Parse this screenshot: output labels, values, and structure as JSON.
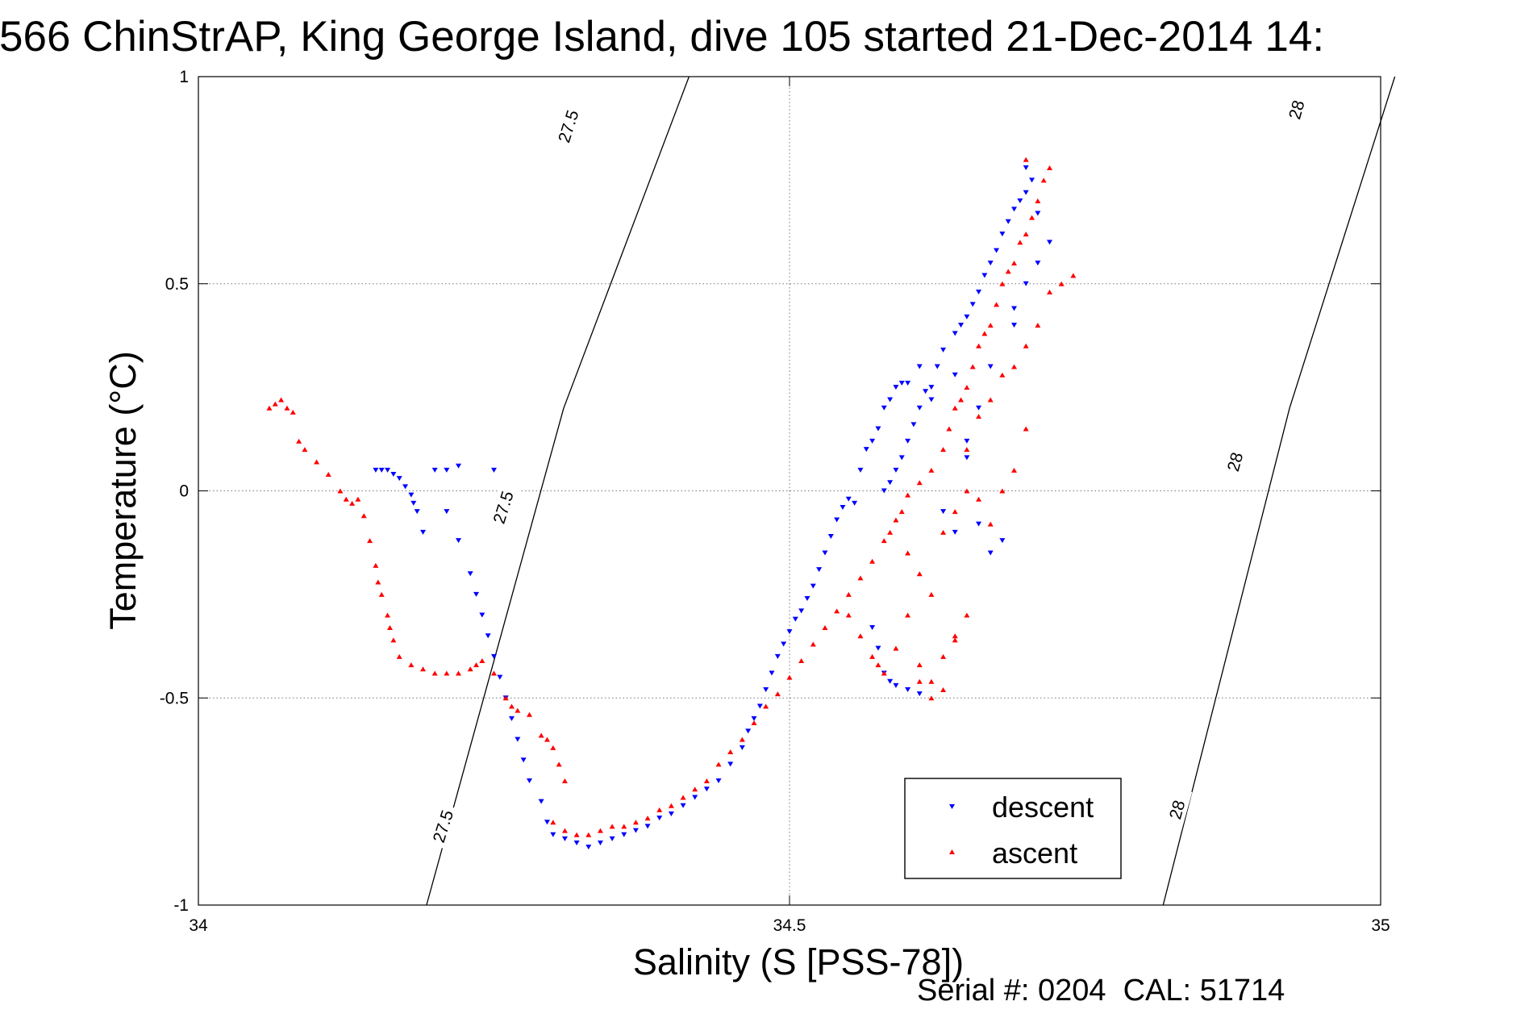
{
  "chart_data": {
    "type": "scatter",
    "title": "566 ChinStrAP, King George Island, dive 105 started 21-Dec-2014 14:",
    "xlabel": "Salinity (S [PSS-78])",
    "ylabel": "Temperature (°C)",
    "xlim": [
      34,
      35
    ],
    "ylim": [
      -1,
      1
    ],
    "xticks": [
      "34",
      "34.5",
      "35"
    ],
    "yticks": [
      "-1",
      "-0.5",
      "0",
      "0.5",
      "1"
    ],
    "grid": true,
    "legend_position": "bottom-right",
    "footer": "Serial #: 0204  CAL: 51714",
    "density_contours": [
      {
        "value": "27.5",
        "points": [
          [
            34.193,
            -1.0
          ],
          [
            34.309,
            0.2
          ],
          [
            34.415,
            1.0
          ]
        ],
        "labels": [
          [
            34.207,
            -0.81
          ],
          [
            34.258,
            -0.04
          ],
          [
            34.313,
            0.88
          ]
        ]
      },
      {
        "value": "28",
        "points": [
          [
            34.816,
            -1.0
          ],
          [
            34.923,
            0.2
          ],
          [
            35.012,
            1.0
          ]
        ],
        "labels": [
          [
            34.828,
            -0.77
          ],
          [
            34.877,
            0.07
          ],
          [
            34.929,
            0.92
          ]
        ]
      }
    ],
    "series": [
      {
        "name": "descent",
        "color": "#0000ff",
        "marker": "triangle-down",
        "points": [
          [
            34.15,
            0.05
          ],
          [
            34.155,
            0.05
          ],
          [
            34.16,
            0.05
          ],
          [
            34.165,
            0.04
          ],
          [
            34.17,
            0.03
          ],
          [
            34.175,
            0.01
          ],
          [
            34.18,
            -0.01
          ],
          [
            34.182,
            -0.03
          ],
          [
            34.185,
            -0.05
          ],
          [
            34.19,
            -0.1
          ],
          [
            34.2,
            0.05
          ],
          [
            34.21,
            0.05
          ],
          [
            34.22,
            0.06
          ],
          [
            34.25,
            0.05
          ],
          [
            34.21,
            -0.05
          ],
          [
            34.22,
            -0.12
          ],
          [
            34.23,
            -0.2
          ],
          [
            34.235,
            -0.25
          ],
          [
            34.24,
            -0.3
          ],
          [
            34.245,
            -0.35
          ],
          [
            34.25,
            -0.4
          ],
          [
            34.255,
            -0.45
          ],
          [
            34.26,
            -0.5
          ],
          [
            34.265,
            -0.55
          ],
          [
            34.27,
            -0.6
          ],
          [
            34.275,
            -0.65
          ],
          [
            34.28,
            -0.7
          ],
          [
            34.29,
            -0.75
          ],
          [
            34.295,
            -0.8
          ],
          [
            34.3,
            -0.83
          ],
          [
            34.31,
            -0.84
          ],
          [
            34.32,
            -0.85
          ],
          [
            34.33,
            -0.86
          ],
          [
            34.34,
            -0.85
          ],
          [
            34.35,
            -0.84
          ],
          [
            34.36,
            -0.83
          ],
          [
            34.37,
            -0.82
          ],
          [
            34.38,
            -0.81
          ],
          [
            34.39,
            -0.79
          ],
          [
            34.4,
            -0.78
          ],
          [
            34.41,
            -0.76
          ],
          [
            34.42,
            -0.74
          ],
          [
            34.43,
            -0.72
          ],
          [
            34.44,
            -0.7
          ],
          [
            34.45,
            -0.66
          ],
          [
            34.46,
            -0.62
          ],
          [
            34.465,
            -0.58
          ],
          [
            34.47,
            -0.55
          ],
          [
            34.475,
            -0.52
          ],
          [
            34.48,
            -0.48
          ],
          [
            34.485,
            -0.44
          ],
          [
            34.49,
            -0.4
          ],
          [
            34.495,
            -0.37
          ],
          [
            34.5,
            -0.34
          ],
          [
            34.505,
            -0.31
          ],
          [
            34.51,
            -0.29
          ],
          [
            34.515,
            -0.26
          ],
          [
            34.52,
            -0.23
          ],
          [
            34.525,
            -0.19
          ],
          [
            34.53,
            -0.15
          ],
          [
            34.535,
            -0.11
          ],
          [
            34.54,
            -0.07
          ],
          [
            34.545,
            -0.04
          ],
          [
            34.55,
            -0.02
          ],
          [
            34.555,
            -0.03
          ],
          [
            34.56,
            0.05
          ],
          [
            34.565,
            0.1
          ],
          [
            34.57,
            0.12
          ],
          [
            34.575,
            0.15
          ],
          [
            34.58,
            0.2
          ],
          [
            34.585,
            0.22
          ],
          [
            34.59,
            0.25
          ],
          [
            34.595,
            0.26
          ],
          [
            34.6,
            0.26
          ],
          [
            34.57,
            -0.33
          ],
          [
            34.575,
            -0.38
          ],
          [
            34.58,
            -0.44
          ],
          [
            34.585,
            -0.46
          ],
          [
            34.59,
            -0.47
          ],
          [
            34.6,
            -0.48
          ],
          [
            34.61,
            -0.49
          ],
          [
            34.58,
            0.0
          ],
          [
            34.585,
            0.02
          ],
          [
            34.59,
            0.05
          ],
          [
            34.595,
            0.08
          ],
          [
            34.6,
            0.12
          ],
          [
            34.605,
            0.16
          ],
          [
            34.61,
            0.2
          ],
          [
            34.615,
            0.24
          ],
          [
            34.62,
            0.25
          ],
          [
            34.625,
            0.3
          ],
          [
            34.63,
            0.34
          ],
          [
            34.64,
            0.38
          ],
          [
            34.645,
            0.4
          ],
          [
            34.65,
            0.42
          ],
          [
            34.655,
            0.45
          ],
          [
            34.66,
            0.48
          ],
          [
            34.665,
            0.52
          ],
          [
            34.67,
            0.55
          ],
          [
            34.675,
            0.58
          ],
          [
            34.68,
            0.62
          ],
          [
            34.685,
            0.65
          ],
          [
            34.69,
            0.68
          ],
          [
            34.695,
            0.7
          ],
          [
            34.7,
            0.72
          ],
          [
            34.705,
            0.75
          ],
          [
            34.7,
            0.78
          ],
          [
            34.61,
            0.3
          ],
          [
            34.62,
            0.22
          ],
          [
            34.64,
            0.28
          ],
          [
            34.65,
            0.12
          ],
          [
            34.66,
            0.2
          ],
          [
            34.67,
            0.3
          ],
          [
            34.69,
            0.4
          ],
          [
            34.7,
            0.5
          ],
          [
            34.71,
            0.55
          ],
          [
            34.72,
            0.6
          ],
          [
            34.71,
            0.67
          ],
          [
            34.69,
            0.44
          ],
          [
            34.65,
            0.08
          ],
          [
            34.63,
            -0.05
          ],
          [
            34.64,
            -0.1
          ],
          [
            34.66,
            -0.08
          ],
          [
            34.67,
            -0.15
          ],
          [
            34.68,
            -0.12
          ]
        ]
      },
      {
        "name": "ascent",
        "color": "#ff0000",
        "marker": "triangle-up",
        "points": [
          [
            34.06,
            0.2
          ],
          [
            34.065,
            0.21
          ],
          [
            34.07,
            0.22
          ],
          [
            34.075,
            0.2
          ],
          [
            34.08,
            0.19
          ],
          [
            34.085,
            0.12
          ],
          [
            34.09,
            0.1
          ],
          [
            34.1,
            0.07
          ],
          [
            34.11,
            0.04
          ],
          [
            34.12,
            0.0
          ],
          [
            34.125,
            -0.02
          ],
          [
            34.13,
            -0.03
          ],
          [
            34.135,
            -0.02
          ],
          [
            34.14,
            -0.06
          ],
          [
            34.145,
            -0.12
          ],
          [
            34.15,
            -0.18
          ],
          [
            34.152,
            -0.22
          ],
          [
            34.155,
            -0.25
          ],
          [
            34.16,
            -0.3
          ],
          [
            34.162,
            -0.33
          ],
          [
            34.165,
            -0.36
          ],
          [
            34.17,
            -0.4
          ],
          [
            34.18,
            -0.42
          ],
          [
            34.19,
            -0.43
          ],
          [
            34.2,
            -0.44
          ],
          [
            34.21,
            -0.44
          ],
          [
            34.22,
            -0.44
          ],
          [
            34.23,
            -0.43
          ],
          [
            34.235,
            -0.42
          ],
          [
            34.24,
            -0.41
          ],
          [
            34.25,
            -0.44
          ],
          [
            34.26,
            -0.5
          ],
          [
            34.265,
            -0.52
          ],
          [
            34.27,
            -0.53
          ],
          [
            34.28,
            -0.54
          ],
          [
            34.29,
            -0.59
          ],
          [
            34.295,
            -0.6
          ],
          [
            34.3,
            -0.62
          ],
          [
            34.305,
            -0.66
          ],
          [
            34.31,
            -0.7
          ],
          [
            34.3,
            -0.8
          ],
          [
            34.31,
            -0.82
          ],
          [
            34.32,
            -0.83
          ],
          [
            34.33,
            -0.83
          ],
          [
            34.34,
            -0.82
          ],
          [
            34.35,
            -0.81
          ],
          [
            34.36,
            -0.81
          ],
          [
            34.37,
            -0.8
          ],
          [
            34.38,
            -0.79
          ],
          [
            34.39,
            -0.77
          ],
          [
            34.4,
            -0.76
          ],
          [
            34.41,
            -0.74
          ],
          [
            34.42,
            -0.72
          ],
          [
            34.43,
            -0.7
          ],
          [
            34.44,
            -0.66
          ],
          [
            34.45,
            -0.63
          ],
          [
            34.46,
            -0.6
          ],
          [
            34.47,
            -0.56
          ],
          [
            34.48,
            -0.52
          ],
          [
            34.49,
            -0.49
          ],
          [
            34.5,
            -0.45
          ],
          [
            34.51,
            -0.41
          ],
          [
            34.52,
            -0.37
          ],
          [
            34.53,
            -0.33
          ],
          [
            34.54,
            -0.29
          ],
          [
            34.55,
            -0.25
          ],
          [
            34.56,
            -0.21
          ],
          [
            34.57,
            -0.17
          ],
          [
            34.58,
            -0.12
          ],
          [
            34.585,
            -0.1
          ],
          [
            34.59,
            -0.07
          ],
          [
            34.595,
            -0.05
          ],
          [
            34.6,
            -0.01
          ],
          [
            34.61,
            0.02
          ],
          [
            34.62,
            0.05
          ],
          [
            34.63,
            0.1
          ],
          [
            34.635,
            0.15
          ],
          [
            34.64,
            0.2
          ],
          [
            34.645,
            0.22
          ],
          [
            34.65,
            0.25
          ],
          [
            34.655,
            0.3
          ],
          [
            34.66,
            0.35
          ],
          [
            34.665,
            0.38
          ],
          [
            34.67,
            0.4
          ],
          [
            34.675,
            0.45
          ],
          [
            34.68,
            0.5
          ],
          [
            34.685,
            0.53
          ],
          [
            34.69,
            0.55
          ],
          [
            34.695,
            0.6
          ],
          [
            34.7,
            0.62
          ],
          [
            34.705,
            0.66
          ],
          [
            34.71,
            0.7
          ],
          [
            34.715,
            0.75
          ],
          [
            34.72,
            0.78
          ],
          [
            34.7,
            0.8
          ],
          [
            34.55,
            -0.3
          ],
          [
            34.56,
            -0.35
          ],
          [
            34.57,
            -0.4
          ],
          [
            34.575,
            -0.42
          ],
          [
            34.58,
            -0.44
          ],
          [
            34.59,
            -0.38
          ],
          [
            34.6,
            -0.3
          ],
          [
            34.61,
            -0.46
          ],
          [
            34.62,
            -0.5
          ],
          [
            34.63,
            -0.4
          ],
          [
            34.64,
            -0.35
          ],
          [
            34.62,
            -0.25
          ],
          [
            34.61,
            -0.2
          ],
          [
            34.6,
            -0.15
          ],
          [
            34.63,
            -0.1
          ],
          [
            34.64,
            -0.05
          ],
          [
            34.65,
            0.0
          ],
          [
            34.66,
            -0.02
          ],
          [
            34.67,
            -0.08
          ],
          [
            34.68,
            0.0
          ],
          [
            34.69,
            0.05
          ],
          [
            34.7,
            0.15
          ],
          [
            34.65,
            0.1
          ],
          [
            34.66,
            0.18
          ],
          [
            34.67,
            0.22
          ],
          [
            34.68,
            0.28
          ],
          [
            34.69,
            0.3
          ],
          [
            34.7,
            0.35
          ],
          [
            34.71,
            0.4
          ],
          [
            34.72,
            0.48
          ],
          [
            34.73,
            0.5
          ],
          [
            34.74,
            0.52
          ],
          [
            34.61,
            -0.42
          ],
          [
            34.62,
            -0.46
          ],
          [
            34.63,
            -0.48
          ],
          [
            34.64,
            -0.36
          ],
          [
            34.65,
            -0.3
          ]
        ]
      }
    ]
  }
}
